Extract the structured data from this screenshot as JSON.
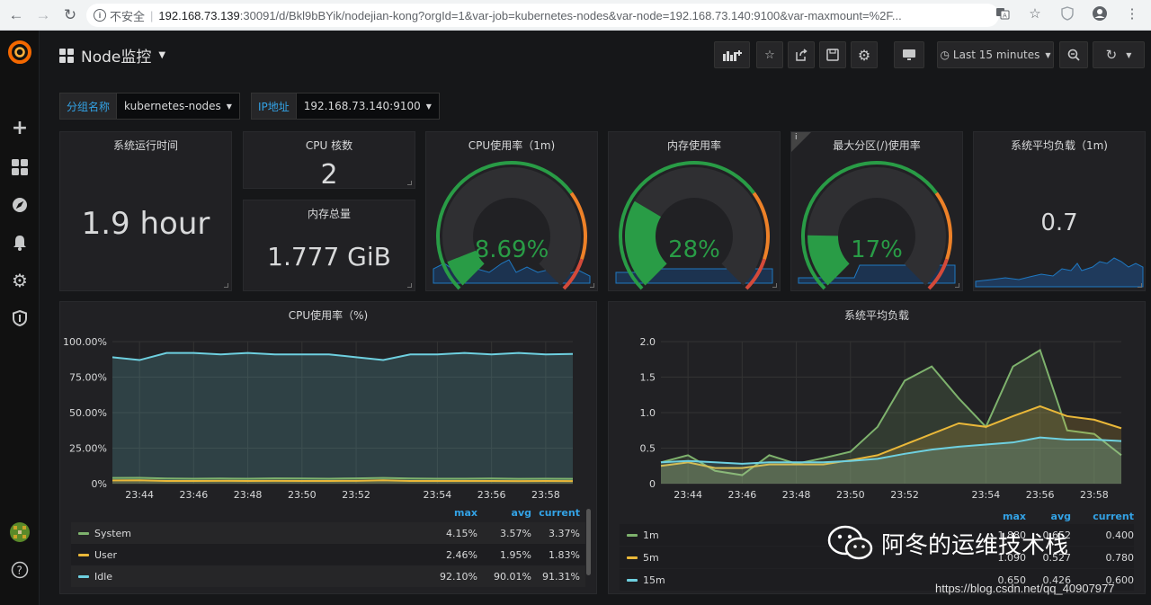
{
  "browser": {
    "security_label": "不安全",
    "url_host": "192.168.73.139",
    "url_rest": ":30091/d/Bkl9bBYik/nodejian-kong?orgId=1&var-job=kubernetes-nodes&var-node=192.168.73.140:9100&var-maxmount=%2F..."
  },
  "dashboard": {
    "title": "Node监控",
    "time_range": "Last 15 minutes"
  },
  "variables": [
    {
      "label": "分组名称",
      "value": "kubernetes-nodes"
    },
    {
      "label": "IP地址",
      "value": "192.168.73.140:9100"
    }
  ],
  "stats": {
    "uptime": {
      "title": "系统运行时间",
      "value": "1.9 hour"
    },
    "cpu_cores": {
      "title": "CPU 核数",
      "value": "2"
    },
    "mem_total": {
      "title": "内存总量",
      "value": "1.777 GiB"
    },
    "cpu_usage": {
      "title": "CPU使用率（1m)",
      "value": "8.69%",
      "percent": 8.69
    },
    "mem_usage": {
      "title": "内存使用率",
      "value": "28%",
      "percent": 28
    },
    "disk_usage": {
      "title": "最大分区(/)使用率",
      "value": "17%",
      "percent": 17
    },
    "load_avg": {
      "title": "系统平均负载（1m)",
      "value": "0.7"
    }
  },
  "colors": {
    "green": "#299c46",
    "orange": "#ed8128",
    "red": "#d44a3a",
    "blue_spark": "#1f78c1",
    "legend_blue": "#33a2e5"
  },
  "cpu_chart": {
    "title": "CPU使用率（%)",
    "legend_headers": {
      "max": "max",
      "avg": "avg",
      "current": "current"
    },
    "legend": [
      {
        "name": "System",
        "color": "#7eb26d",
        "max": "4.15%",
        "avg": "3.57%",
        "current": "3.37%"
      },
      {
        "name": "User",
        "color": "#eab839",
        "max": "2.46%",
        "avg": "1.95%",
        "current": "1.83%"
      },
      {
        "name": "Idle",
        "color": "#6ed0e0",
        "max": "92.10%",
        "avg": "90.01%",
        "current": "91.31%"
      }
    ]
  },
  "load_chart": {
    "title": "系统平均负载",
    "legend_headers": {
      "max": "max",
      "avg": "avg",
      "current": "current"
    },
    "legend": [
      {
        "name": "1m",
        "color": "#7eb26d",
        "max": "1.880",
        "avg": "0.652",
        "current": "0.400"
      },
      {
        "name": "5m",
        "color": "#eab839",
        "max": "1.090",
        "avg": "0.527",
        "current": "0.780"
      },
      {
        "name": "15m",
        "color": "#6ed0e0",
        "max": "0.650",
        "avg": "0.426",
        "current": "0.600"
      }
    ]
  },
  "chart_data": [
    {
      "type": "line",
      "title": "CPU使用率（%)",
      "x": [
        "23:43:30",
        "23:44",
        "23:45",
        "23:46",
        "23:47",
        "23:48",
        "23:49",
        "23:50",
        "23:51",
        "23:52",
        "23:52:30",
        "23:53",
        "23:54",
        "23:55",
        "23:56",
        "23:57",
        "23:58",
        "23:58:50"
      ],
      "xticks": [
        "23:44",
        "23:46",
        "23:48",
        "23:50",
        "23:52",
        "23:54",
        "23:56",
        "23:58"
      ],
      "yticks": [
        "0%",
        "25.00%",
        "50.00%",
        "75.00%",
        "100.00%"
      ],
      "ylim": [
        0,
        100
      ],
      "grid": true,
      "legend_position": "bottom",
      "series": [
        {
          "name": "Idle",
          "values": [
            89,
            87,
            92,
            92,
            91,
            92,
            91,
            91,
            91,
            89,
            87,
            91,
            91,
            92,
            91,
            92,
            91,
            91.3
          ]
        },
        {
          "name": "System",
          "values": [
            4.0,
            4.1,
            3.6,
            3.5,
            3.6,
            3.5,
            3.7,
            3.6,
            3.5,
            3.7,
            4.0,
            3.6,
            3.5,
            3.5,
            3.6,
            3.4,
            3.5,
            3.4
          ]
        },
        {
          "name": "User",
          "values": [
            2.3,
            2.4,
            1.9,
            1.9,
            2.0,
            1.9,
            2.0,
            1.9,
            1.9,
            2.0,
            2.4,
            1.9,
            1.9,
            1.9,
            1.9,
            1.8,
            1.9,
            1.8
          ]
        }
      ]
    },
    {
      "type": "line",
      "title": "系统平均负载",
      "x": [
        "23:43:30",
        "23:44",
        "23:45",
        "23:46",
        "23:47",
        "23:48",
        "23:49",
        "23:50",
        "23:51",
        "23:52",
        "23:52:30",
        "23:53",
        "23:54",
        "23:55",
        "23:56",
        "23:57",
        "23:58",
        "23:58:50"
      ],
      "xticks": [
        "23:44",
        "23:46",
        "23:48",
        "23:50",
        "23:52",
        "23:54",
        "23:56",
        "23:58"
      ],
      "yticks": [
        "0",
        "0.5",
        "1.0",
        "1.5",
        "2.0"
      ],
      "ylim": [
        0,
        2.0
      ],
      "grid": true,
      "legend_position": "bottom",
      "series": [
        {
          "name": "1m",
          "values": [
            0.3,
            0.4,
            0.18,
            0.12,
            0.4,
            0.28,
            0.36,
            0.45,
            0.8,
            1.45,
            1.65,
            1.2,
            0.8,
            1.65,
            1.88,
            0.75,
            0.7,
            0.4
          ]
        },
        {
          "name": "5m",
          "values": [
            0.25,
            0.3,
            0.22,
            0.22,
            0.27,
            0.27,
            0.27,
            0.33,
            0.4,
            0.55,
            0.7,
            0.85,
            0.8,
            0.95,
            1.09,
            0.95,
            0.9,
            0.78
          ]
        },
        {
          "name": "15m",
          "values": [
            0.3,
            0.32,
            0.3,
            0.28,
            0.3,
            0.3,
            0.3,
            0.32,
            0.35,
            0.42,
            0.48,
            0.52,
            0.55,
            0.58,
            0.65,
            0.62,
            0.62,
            0.6
          ]
        }
      ]
    }
  ],
  "watermark": {
    "text": "阿冬的运维技术栈",
    "url": "https://blog.csdn.net/qq_40907977"
  }
}
